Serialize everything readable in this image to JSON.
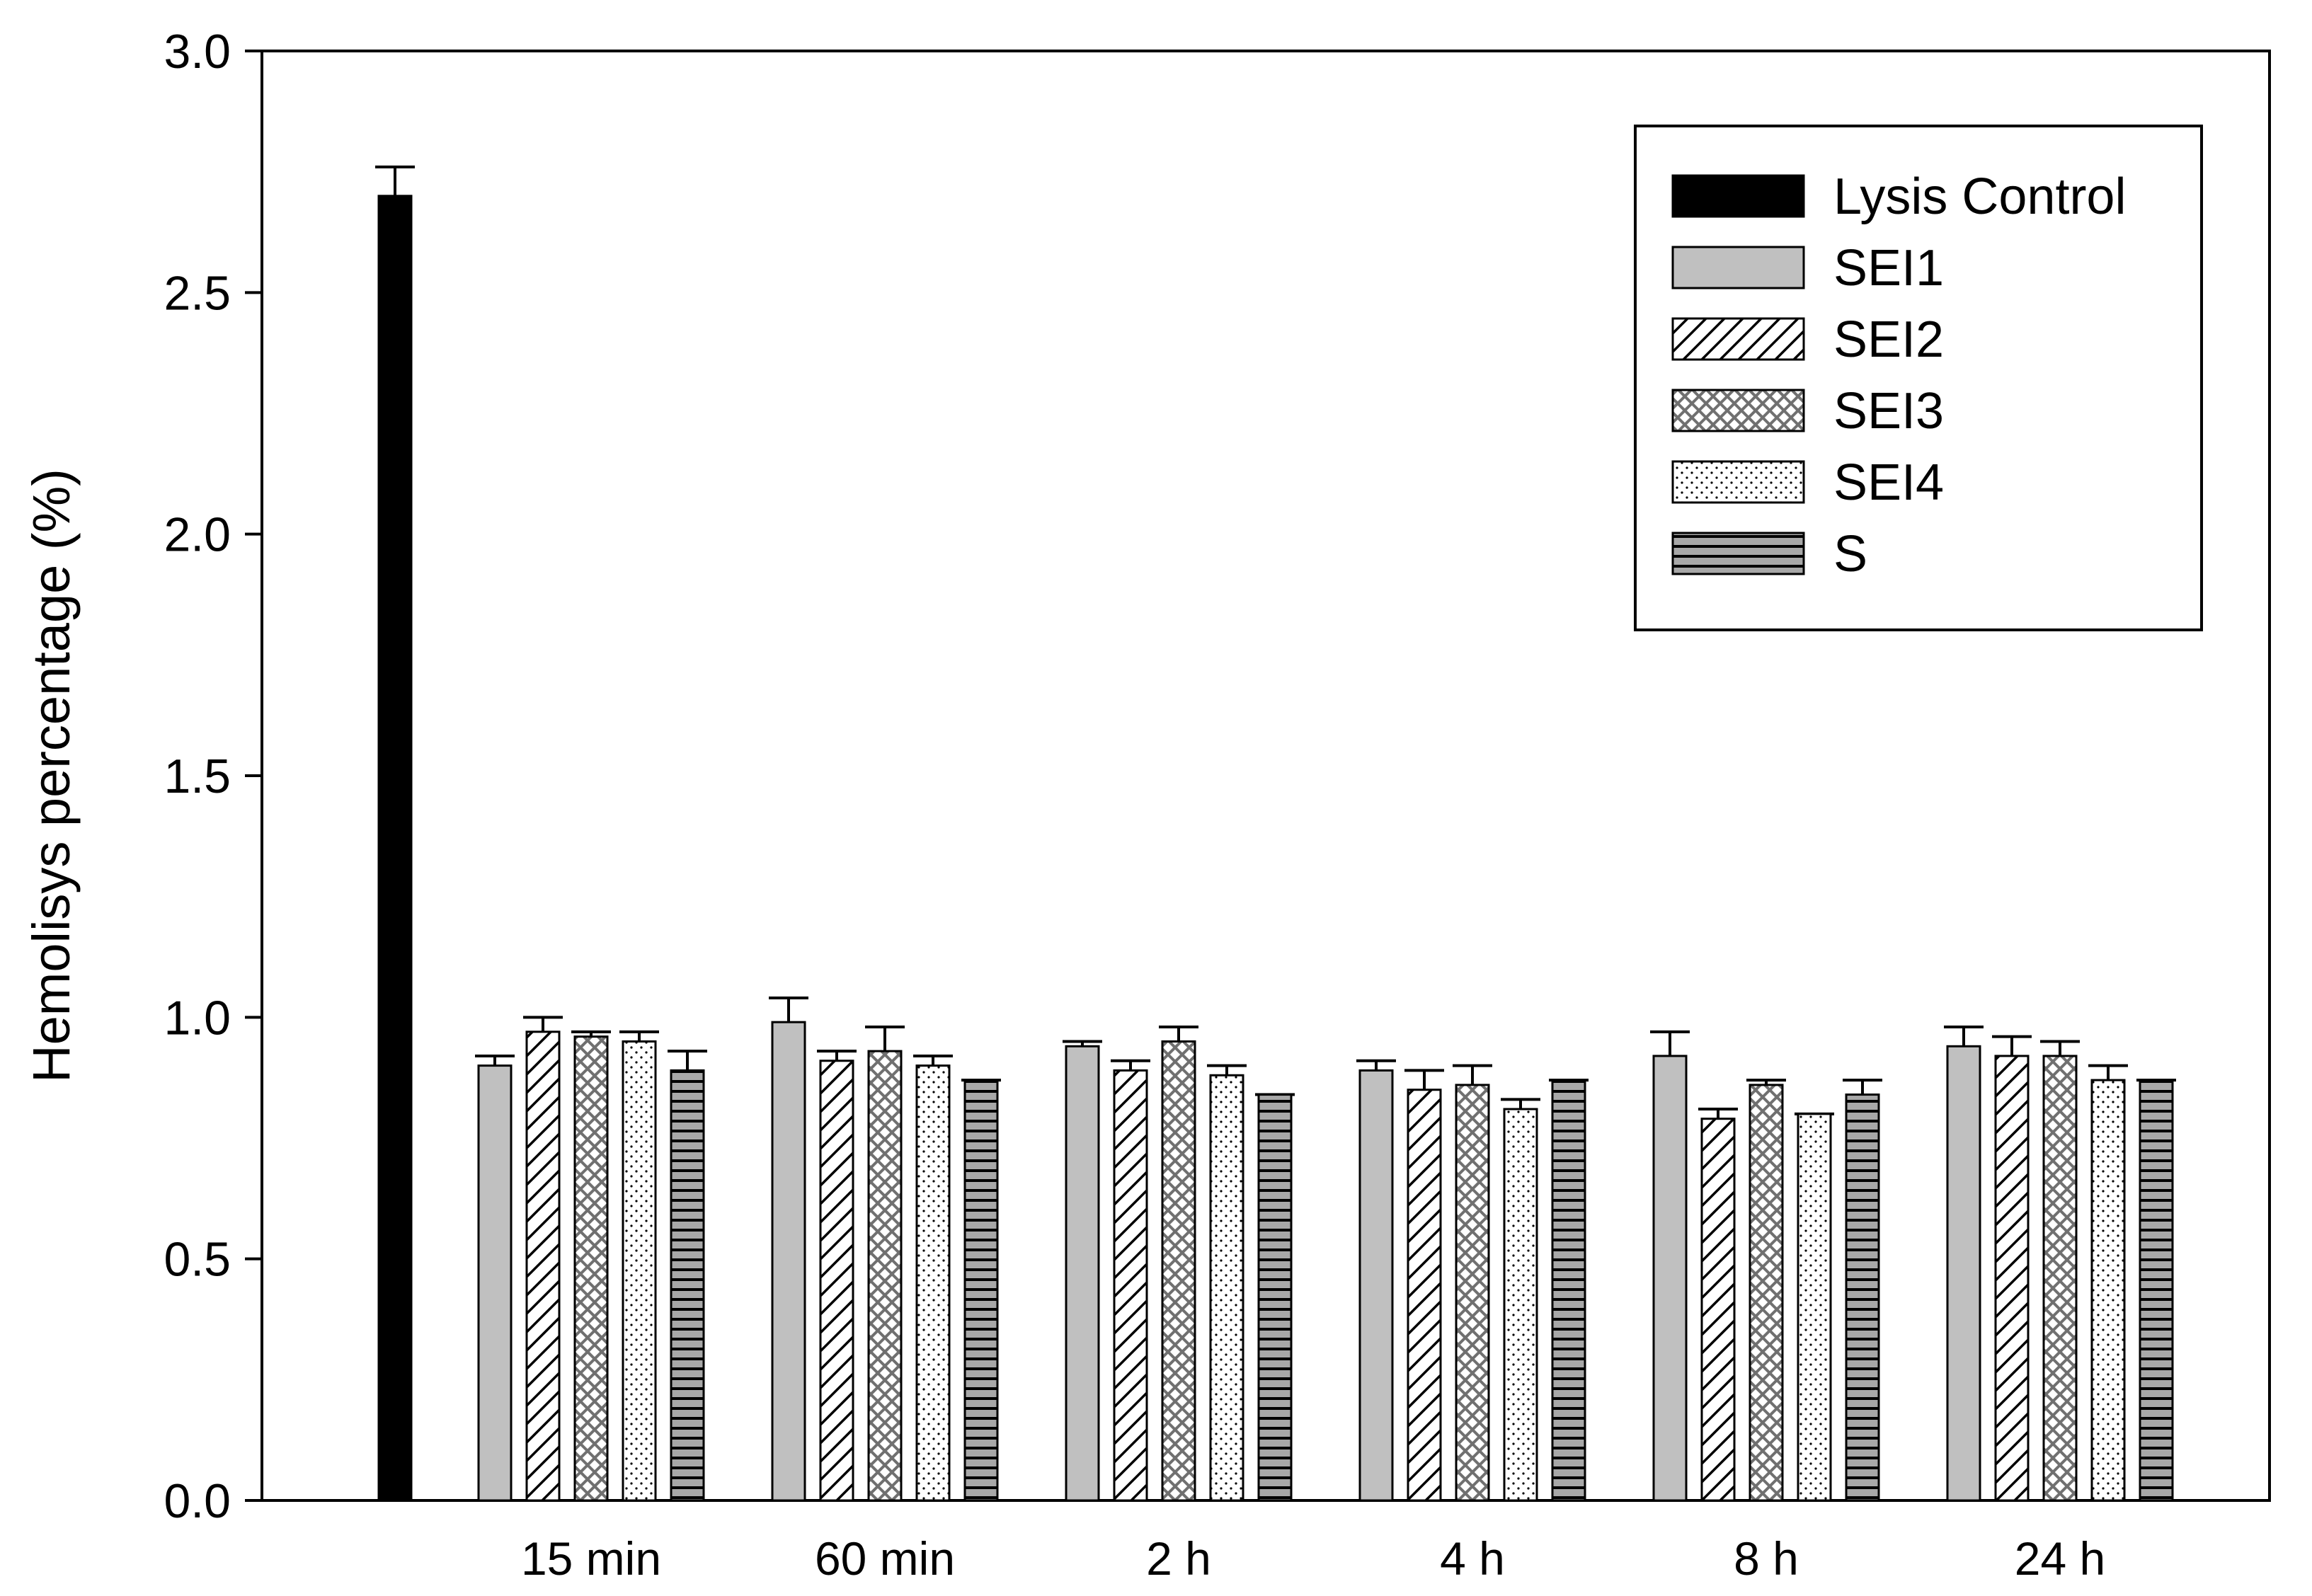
{
  "chart_data": {
    "type": "bar",
    "title": "",
    "xlabel": "",
    "ylabel": "Hemolisys percentage (%)",
    "ylim": [
      0,
      3.0
    ],
    "yticks": [
      "0.0",
      "0.5",
      "1.0",
      "1.5",
      "2.0",
      "2.5",
      "3.0"
    ],
    "grid": false,
    "legend_position": "top-right",
    "lysis_control": {
      "name": "Lysis Control",
      "value": 2.7,
      "error": 0.06
    },
    "categories": [
      "15 min",
      "60 min",
      "2 h",
      "4 h",
      "8 h",
      "24 h"
    ],
    "series": [
      {
        "name": "SEI1",
        "pattern": "solid-gray",
        "values": [
          0.9,
          0.99,
          0.94,
          0.89,
          0.92,
          0.94
        ],
        "errors": [
          0.02,
          0.05,
          0.01,
          0.02,
          0.05,
          0.04
        ]
      },
      {
        "name": "SEI2",
        "pattern": "diagonal-hatch",
        "values": [
          0.97,
          0.91,
          0.89,
          0.85,
          0.79,
          0.92
        ],
        "errors": [
          0.03,
          0.02,
          0.02,
          0.04,
          0.02,
          0.04
        ]
      },
      {
        "name": "SEI3",
        "pattern": "crosshatch",
        "values": [
          0.96,
          0.93,
          0.95,
          0.86,
          0.86,
          0.92
        ],
        "errors": [
          0.01,
          0.05,
          0.03,
          0.04,
          0.01,
          0.03
        ]
      },
      {
        "name": "SEI4",
        "pattern": "dots",
        "values": [
          0.95,
          0.9,
          0.88,
          0.81,
          0.8,
          0.87
        ],
        "errors": [
          0.02,
          0.02,
          0.02,
          0.02,
          0.0,
          0.03
        ]
      },
      {
        "name": "S",
        "pattern": "horizontal-lines",
        "values": [
          0.89,
          0.87,
          0.84,
          0.87,
          0.84,
          0.87
        ],
        "errors": [
          0.04,
          0.0,
          0.0,
          0.0,
          0.03,
          0.0
        ]
      }
    ],
    "colors": {
      "lysis": "#000000",
      "sei1": "#c0c0c0",
      "s_fill": "#a8a8a8",
      "axis": "#000000"
    }
  }
}
